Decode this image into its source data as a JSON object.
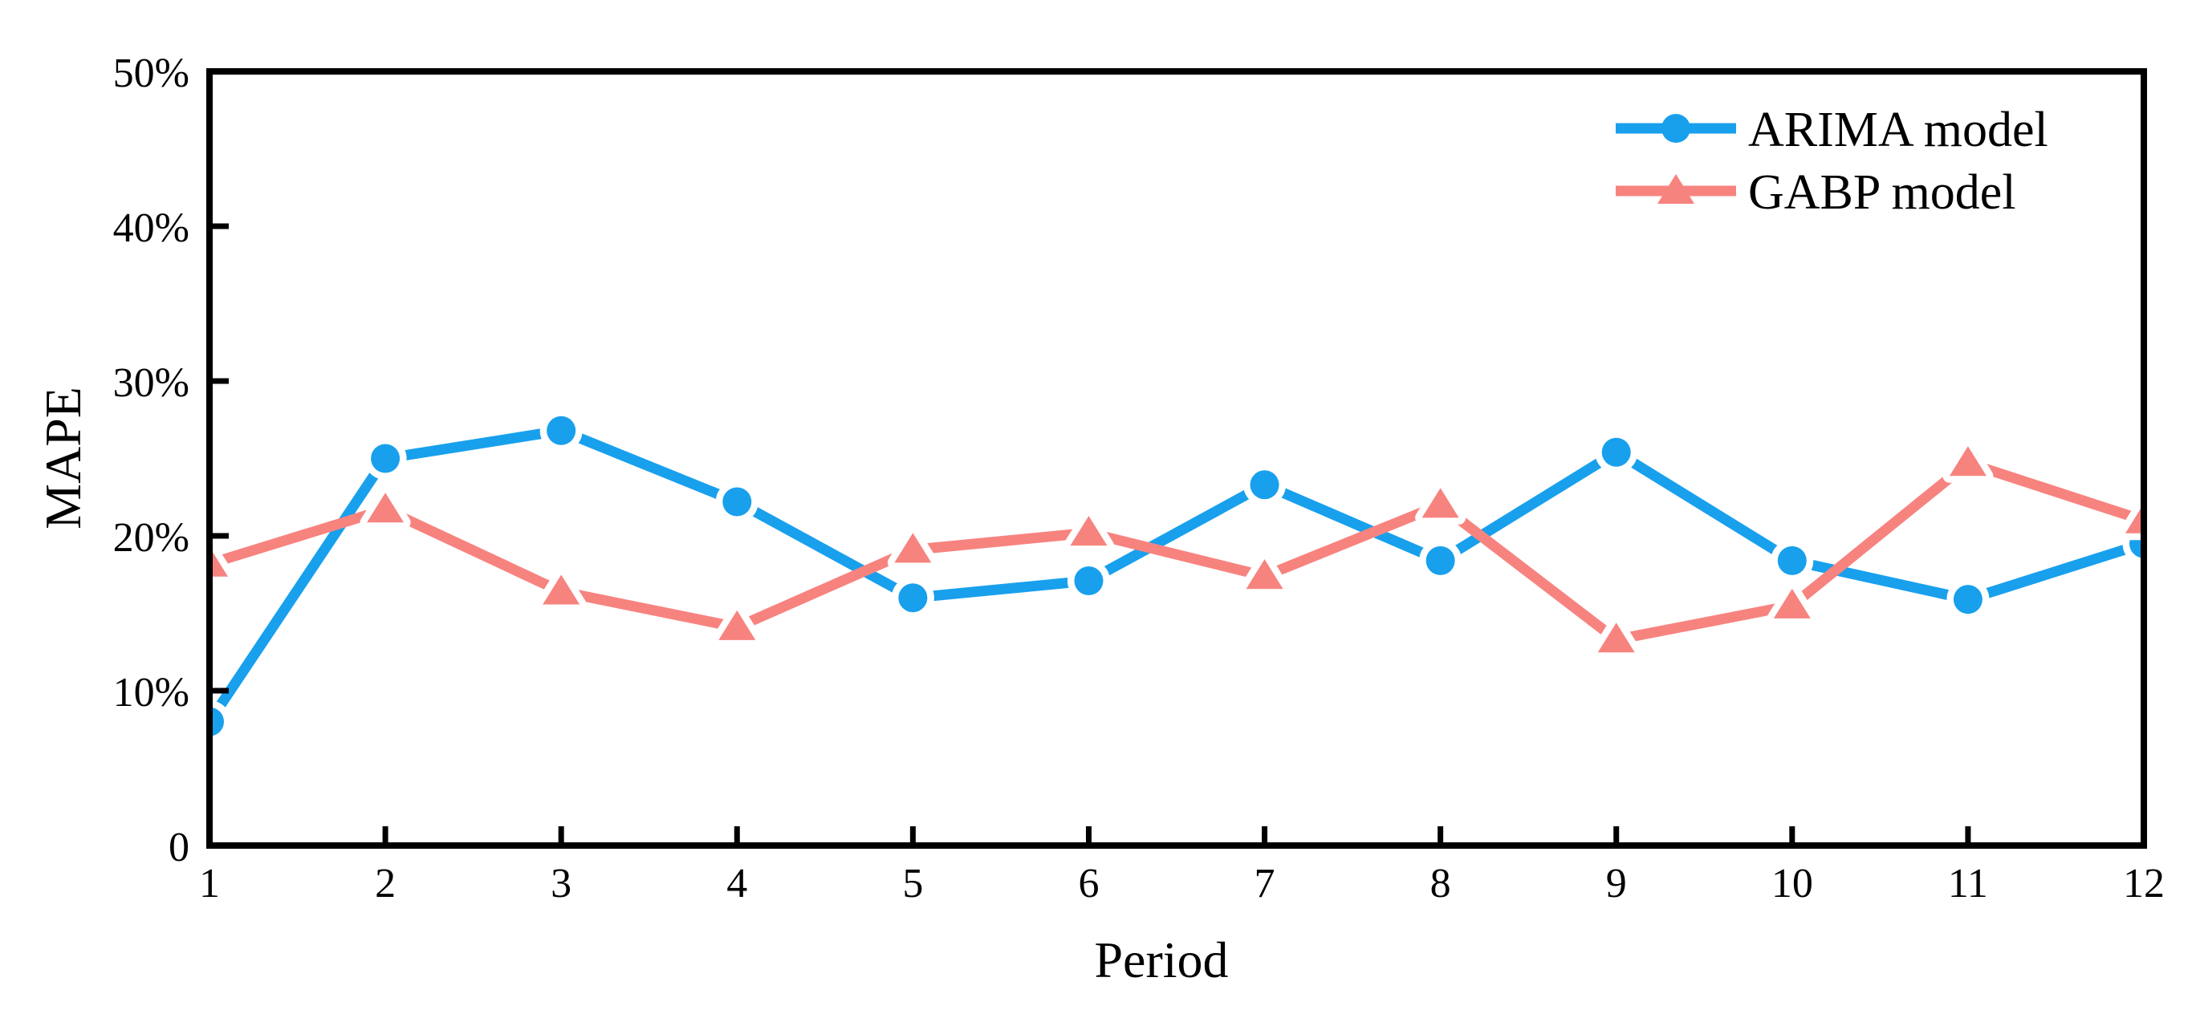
{
  "figure": {
    "background_color": "#ffffff",
    "axis_color": "#000000",
    "tick_label_color": "#000000"
  },
  "chart_data": {
    "type": "line",
    "title": "",
    "xlabel": "Period",
    "ylabel": "MAPE",
    "x": [
      1,
      2,
      3,
      4,
      5,
      6,
      7,
      8,
      9,
      10,
      11,
      12
    ],
    "xlim": [
      1,
      12
    ],
    "ylim": [
      0,
      50
    ],
    "grid": false,
    "legend_position": "top-right",
    "xticks": [
      "1",
      "2",
      "3",
      "4",
      "5",
      "6",
      "7",
      "8",
      "9",
      "10",
      "11",
      "12"
    ],
    "yticks": [
      {
        "value": 0,
        "label": "0"
      },
      {
        "value": 10,
        "label": "10%"
      },
      {
        "value": 20,
        "label": "20%"
      },
      {
        "value": 30,
        "label": "30%"
      },
      {
        "value": 40,
        "label": "40%"
      },
      {
        "value": 50,
        "label": "50%"
      }
    ],
    "y_unit": "percent",
    "series": [
      {
        "name": "ARIMA model",
        "color": "#18a0ed",
        "marker": "circle",
        "values": [
          8.0,
          25.0,
          26.8,
          22.2,
          16.0,
          17.1,
          23.3,
          18.4,
          25.4,
          18.4,
          15.9,
          19.5
        ]
      },
      {
        "name": "GABP model",
        "color": "#f7837f",
        "marker": "triangle",
        "values": [
          18.2,
          21.7,
          16.4,
          14.1,
          19.1,
          20.2,
          17.4,
          22.0,
          13.3,
          15.5,
          24.7,
          21.0
        ]
      }
    ]
  }
}
